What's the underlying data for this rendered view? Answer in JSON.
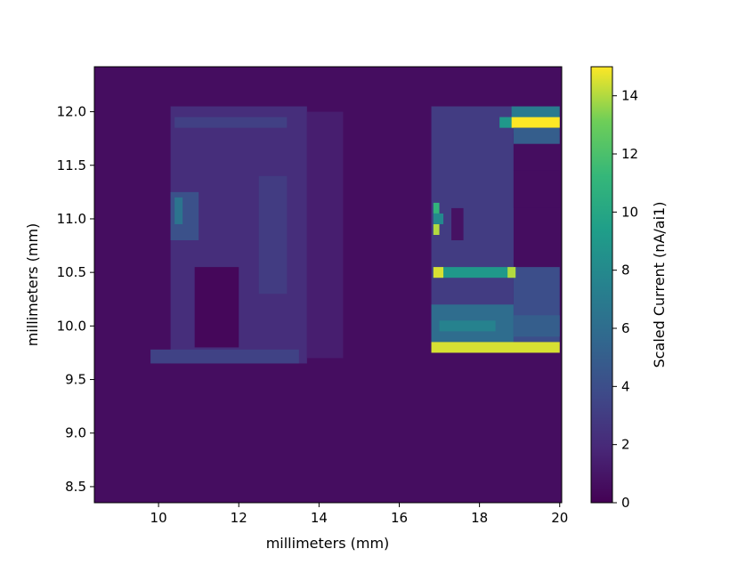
{
  "chart_data": {
    "type": "heatmap",
    "xlabel": "millimeters (mm)",
    "ylabel": "millimeters (mm)",
    "xlim": [
      8.4,
      20.05
    ],
    "ylim": [
      8.35,
      12.42
    ],
    "xticks": [
      10,
      12,
      14,
      16,
      18,
      20
    ],
    "yticks": [
      8.5,
      9.0,
      9.5,
      10.0,
      10.5,
      11.0,
      11.5,
      12.0
    ],
    "xtick_labels": [
      "10",
      "12",
      "14",
      "16",
      "18",
      "20"
    ],
    "ytick_labels": [
      "8.5",
      "9.0",
      "9.5",
      "10.0",
      "10.5",
      "11.0",
      "11.5",
      "12.0"
    ],
    "colorbar": {
      "label": "Scaled Current (nA/ai1)",
      "min": 0,
      "max": 15,
      "ticks": [
        0,
        2,
        4,
        6,
        8,
        10,
        12,
        14
      ],
      "tick_labels": [
        "0",
        "2",
        "4",
        "6",
        "8",
        "10",
        "12",
        "14"
      ],
      "colormap": "viridis"
    },
    "background_value": 0.6,
    "regions": [
      {
        "x": [
          10.3,
          13.7
        ],
        "y": [
          9.65,
          12.05
        ],
        "value": 2.2
      },
      {
        "x": [
          10.3,
          11.0
        ],
        "y": [
          10.8,
          11.25
        ],
        "value": 4.2
      },
      {
        "x": [
          10.4,
          10.6
        ],
        "y": [
          10.95,
          11.2
        ],
        "value": 6.5
      },
      {
        "x": [
          12.5,
          13.2
        ],
        "y": [
          10.3,
          11.4
        ],
        "value": 3.0
      },
      {
        "x": [
          10.9,
          12.0
        ],
        "y": [
          9.8,
          10.55
        ],
        "value": 0.3
      },
      {
        "x": [
          13.7,
          14.6
        ],
        "y": [
          9.7,
          12.0
        ],
        "value": 1.4
      },
      {
        "x": [
          10.4,
          13.2
        ],
        "y": [
          11.85,
          11.95
        ],
        "value": 3.2
      },
      {
        "x": [
          9.8,
          13.5
        ],
        "y": [
          9.65,
          9.78
        ],
        "value": 3.3
      },
      {
        "x": [
          16.8,
          18.85
        ],
        "y": [
          9.75,
          12.05
        ],
        "value": 3.0
      },
      {
        "x": [
          16.8,
          18.85
        ],
        "y": [
          9.85,
          10.2
        ],
        "value": 6.0
      },
      {
        "x": [
          17.0,
          18.4
        ],
        "y": [
          9.95,
          10.05
        ],
        "value": 7.5
      },
      {
        "x": [
          18.85,
          20.0
        ],
        "y": [
          9.85,
          10.55
        ],
        "value": 4.0
      },
      {
        "x": [
          18.85,
          20.0
        ],
        "y": [
          9.9,
          10.1
        ],
        "value": 5.0
      },
      {
        "x": [
          18.85,
          20.0
        ],
        "y": [
          11.45,
          11.8
        ],
        "value": 0.6
      },
      {
        "x": [
          18.85,
          20.0
        ],
        "y": [
          11.1,
          11.45
        ],
        "value": 0.6
      },
      {
        "x": [
          17.3,
          17.6
        ],
        "y": [
          10.8,
          11.1
        ],
        "value": 0.8
      },
      {
        "x": [
          16.8,
          20.0
        ],
        "y": [
          9.75,
          9.85
        ],
        "value": 14.5
      },
      {
        "x": [
          16.85,
          18.9
        ],
        "y": [
          10.45,
          10.55
        ],
        "value": 9.0
      },
      {
        "x": [
          16.85,
          17.1
        ],
        "y": [
          10.45,
          10.55
        ],
        "value": 14.5
      },
      {
        "x": [
          18.7,
          18.9
        ],
        "y": [
          10.45,
          10.55
        ],
        "value": 14.0
      },
      {
        "x": [
          18.5,
          20.0
        ],
        "y": [
          11.85,
          11.95
        ],
        "value": 9.0
      },
      {
        "x": [
          18.8,
          20.0
        ],
        "y": [
          11.85,
          11.95
        ],
        "value": 15.0
      },
      {
        "x": [
          18.8,
          20.0
        ],
        "y": [
          11.95,
          12.05
        ],
        "value": 7.0
      },
      {
        "x": [
          18.85,
          20.0
        ],
        "y": [
          11.7,
          11.85
        ],
        "value": 5.0
      },
      {
        "x": [
          16.85,
          17.0
        ],
        "y": [
          11.05,
          11.15
        ],
        "value": 11.0
      },
      {
        "x": [
          16.85,
          17.0
        ],
        "y": [
          10.85,
          10.95
        ],
        "value": 14.0
      },
      {
        "x": [
          16.85,
          17.1
        ],
        "y": [
          10.95,
          11.05
        ],
        "value": 8.0
      }
    ]
  }
}
